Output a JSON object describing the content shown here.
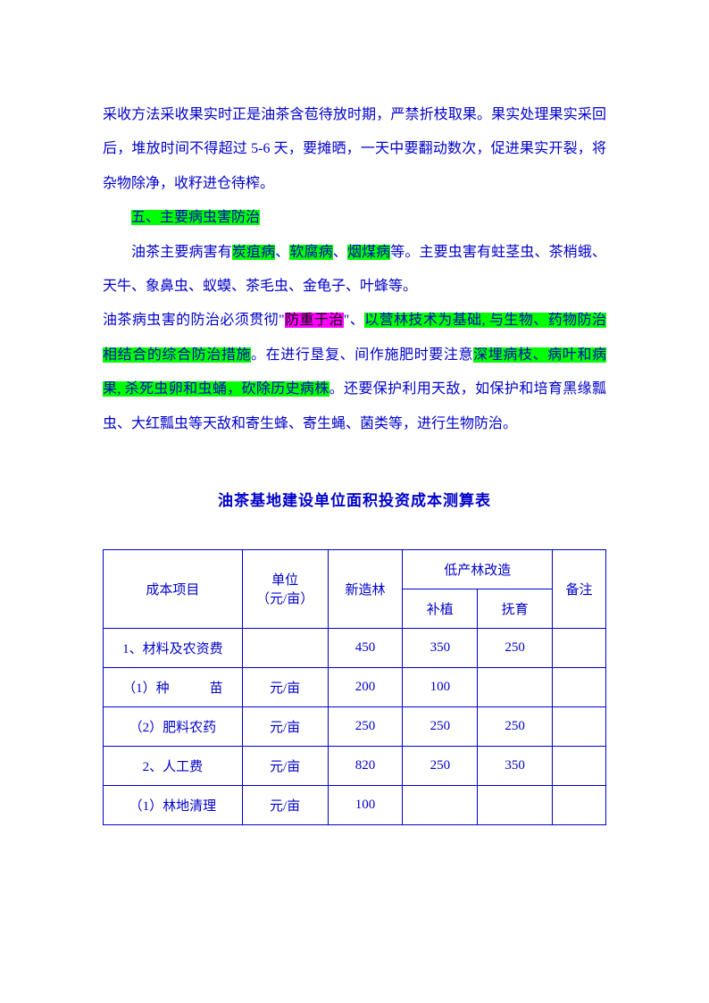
{
  "text_color": "#0000cc",
  "highlight_green": "#00ff00",
  "highlight_magenta": "#ff00ff",
  "background_color": "#ffffff",
  "body_fontsize": 16,
  "line_height": 2.4,
  "title_fontsize": 17,
  "p1a": "采收方法采收果实时正是油茶含苞待放时期，严禁折枝取果。果实处理果实采回后，堆放时间不得超过 5-6 天，要摊晒，一天中要翻动数次，促进果实开裂，将杂物除净，收籽进仓待榨。",
  "p2a": "五、主要病虫害防治",
  "p3_pre": "油茶主要病害有",
  "p3_h1": "炭疽病",
  "p3_sep1": "、",
  "p3_h2": "软腐病",
  "p3_sep2": "、",
  "p3_h3": "烟煤病",
  "p3_post": "等。主要虫害有蛀茎虫、茶梢蛾、天牛、象鼻虫、蚁蟆、茶毛虫、金龟子、叶蜂等。",
  "p4_pre": "油茶病虫害的防治必须贯彻\"",
  "p4_h1": "防重于治",
  "p4_mid1": "\"、",
  "p4_h2": "以营林技术为基础, 与生物、",
  "p4_h2b": "药物防治相结合的综合防治措施",
  "p4_mid2": "。在进行垦复、间作施肥时要注意",
  "p4_h3": "深埋",
  "p4_h3b": "病枝、病叶和病果, 杀死虫卵和虫蛹，砍除历史病株",
  "p4_post": "。还要保护利用天敌，如保护和培育黑缘瓢虫、大红瓢虫等天敌和寄生蜂、寄生蝇、菌类等，进行生物防治。",
  "table_title": "油茶基地建设单位面积投资成本测算表",
  "table": {
    "header_row1": {
      "col_item": "成本项目",
      "col_unit_l1": "单位",
      "col_unit_l2": "（元/亩）",
      "col_new": "新造林",
      "col_low": "低产林改造",
      "col_note": "备注"
    },
    "header_row2": {
      "col_sub1": "补植",
      "col_sub2": "抚育"
    },
    "rows": [
      {
        "item": "1、材料及农资费",
        "unit": "",
        "new": "450",
        "sub1": "350",
        "sub2": "250",
        "note": ""
      },
      {
        "item": "（1）种　　　苗",
        "unit": "元/亩",
        "new": "200",
        "sub1": "100",
        "sub2": "",
        "note": ""
      },
      {
        "item": "（2）肥料农药",
        "unit": "元/亩",
        "new": "250",
        "sub1": "250",
        "sub2": "250",
        "note": ""
      },
      {
        "item": "2、人工费",
        "unit": "元/亩",
        "new": "820",
        "sub1": "250",
        "sub2": "350",
        "note": ""
      },
      {
        "item": "（1）林地清理",
        "unit": "元/亩",
        "new": "100",
        "sub1": "",
        "sub2": "",
        "note": ""
      }
    ]
  }
}
